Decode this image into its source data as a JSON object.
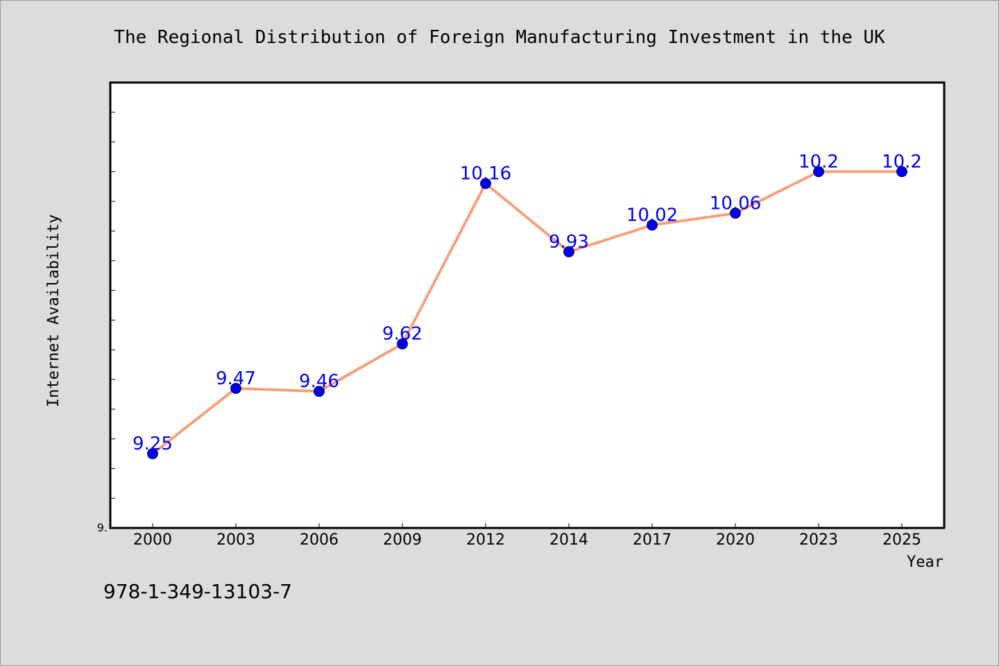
{
  "chart_data": {
    "type": "line",
    "title": "The Regional Distribution of Foreign Manufacturing Investment in the UK",
    "xlabel": "Year",
    "ylabel": "Internet Availability",
    "categories": [
      "2000",
      "2003",
      "2006",
      "2009",
      "2012",
      "2014",
      "2017",
      "2020",
      "2023",
      "2025"
    ],
    "series": [
      {
        "values": [
          9.25,
          9.47,
          9.46,
          9.62,
          10.16,
          9.93,
          10.02,
          10.06,
          10.2,
          10.2
        ],
        "labels": [
          "9.25",
          "9.47",
          "9.46",
          "9.62",
          "10.16",
          "9.93",
          "10.02",
          "10.06",
          "10.2",
          "10.2"
        ]
      }
    ],
    "ylim": [
      9.0,
      10.5
    ],
    "yticks": [
      9.0,
      9.1,
      9.2,
      9.3,
      9.4,
      9.5,
      9.6,
      9.7,
      9.8,
      9.9,
      10.0,
      10.1,
      10.2,
      10.3,
      10.4
    ],
    "ytick_labels_shown": [
      "9."
    ],
    "grid": false,
    "line_color": "#f4a07c",
    "marker_color": "#0000ee",
    "label_color": "#0000ee",
    "plot_background": "#ffffff",
    "figure_background": "#dcdcdc"
  },
  "footer": {
    "isbn": "978-1-349-13103-7"
  }
}
